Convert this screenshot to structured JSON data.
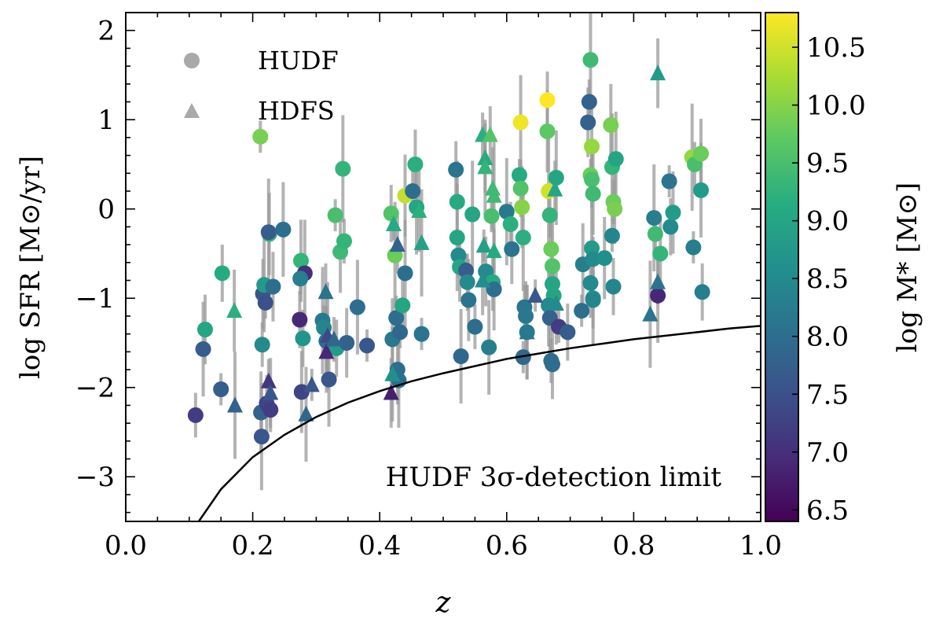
{
  "chart_data": {
    "type": "scatter",
    "title": "",
    "xlabel": "z",
    "ylabel": "log SFR [M⊙/yr]",
    "xlim": [
      0.0,
      1.0
    ],
    "ylim": [
      -3.5,
      2.2
    ],
    "x_ticks": [
      "0.0",
      "0.2",
      "0.4",
      "0.6",
      "0.8",
      "1.0"
    ],
    "y_ticks": [
      "−3",
      "−2",
      "−1",
      "0",
      "1",
      "2"
    ],
    "colorbar": {
      "label": "log M* [M⊙]",
      "range": [
        6.4,
        10.8
      ],
      "ticks": [
        "6.5",
        "7.0",
        "7.5",
        "8.0",
        "8.5",
        "9.0",
        "9.5",
        "10.0",
        "10.5"
      ],
      "colormap": "viridis"
    },
    "legend": [
      {
        "label": "HUDF",
        "marker": "circle"
      },
      {
        "label": "HDFS",
        "marker": "triangle"
      }
    ],
    "legend_position": "top-left",
    "annotation": "HUDF 3σ-detection limit",
    "detection_limit_curve": {
      "x": [
        0.115,
        0.15,
        0.2,
        0.25,
        0.3,
        0.35,
        0.4,
        0.45,
        0.5,
        0.55,
        0.6,
        0.65,
        0.7,
        0.75,
        0.8,
        0.85,
        0.9,
        0.95,
        1.0
      ],
      "y": [
        -3.5,
        -3.14,
        -2.78,
        -2.53,
        -2.33,
        -2.17,
        -2.04,
        -1.93,
        -1.84,
        -1.76,
        -1.68,
        -1.62,
        -1.56,
        -1.51,
        -1.46,
        -1.42,
        -1.38,
        -1.34,
        -1.31
      ]
    },
    "series": [
      {
        "name": "HUDF",
        "marker": "circle",
        "points": [
          {
            "z": 0.212,
            "sfr": 0.81,
            "mass": 9.9
          },
          {
            "z": 0.274,
            "sfr": -1.24,
            "mass": 6.9
          },
          {
            "z": 0.276,
            "sfr": -0.58,
            "mass": 9.3
          },
          {
            "z": 0.282,
            "sfr": -0.72,
            "mass": 7.0
          },
          {
            "z": 0.11,
            "sfr": -2.31,
            "mass": 7.2
          },
          {
            "z": 0.125,
            "sfr": -1.35,
            "mass": 9.0
          },
          {
            "z": 0.122,
            "sfr": -1.57,
            "mass": 7.7
          },
          {
            "z": 0.15,
            "sfr": -2.02,
            "mass": 7.7
          },
          {
            "z": 0.152,
            "sfr": -0.72,
            "mass": 9.1
          },
          {
            "z": 0.213,
            "sfr": -2.28,
            "mass": 7.8
          },
          {
            "z": 0.214,
            "sfr": -2.55,
            "mass": 7.6
          },
          {
            "z": 0.215,
            "sfr": -1.52,
            "mass": 8.5
          },
          {
            "z": 0.216,
            "sfr": -0.95,
            "mass": 7.6
          },
          {
            "z": 0.218,
            "sfr": -0.85,
            "mass": 8.8
          },
          {
            "z": 0.22,
            "sfr": -1.05,
            "mass": 7.5
          },
          {
            "z": 0.222,
            "sfr": -2.18,
            "mass": 7.3
          },
          {
            "z": 0.226,
            "sfr": -0.28,
            "mass": 9.3
          },
          {
            "z": 0.225,
            "sfr": -0.26,
            "mass": 7.7
          },
          {
            "z": 0.228,
            "sfr": -2.25,
            "mass": 7.2
          },
          {
            "z": 0.232,
            "sfr": -0.87,
            "mass": 8.0
          },
          {
            "z": 0.248,
            "sfr": -0.23,
            "mass": 8.0
          },
          {
            "z": 0.275,
            "sfr": -0.78,
            "mass": 8.3
          },
          {
            "z": 0.279,
            "sfr": -1.45,
            "mass": 8.7
          },
          {
            "z": 0.277,
            "sfr": -2.05,
            "mass": 7.3
          },
          {
            "z": 0.31,
            "sfr": -1.25,
            "mass": 8.2
          },
          {
            "z": 0.312,
            "sfr": -1.33,
            "mass": 8.4
          },
          {
            "z": 0.316,
            "sfr": -1.48,
            "mass": 8.0
          },
          {
            "z": 0.32,
            "sfr": -1.91,
            "mass": 7.6
          },
          {
            "z": 0.33,
            "sfr": -0.07,
            "mass": 9.5
          },
          {
            "z": 0.332,
            "sfr": -1.56,
            "mass": 8.8
          },
          {
            "z": 0.338,
            "sfr": -0.48,
            "mass": 9.4
          },
          {
            "z": 0.342,
            "sfr": 0.45,
            "mass": 9.3
          },
          {
            "z": 0.344,
            "sfr": -0.36,
            "mass": 9.3
          },
          {
            "z": 0.348,
            "sfr": -1.5,
            "mass": 7.8
          },
          {
            "z": 0.365,
            "sfr": -1.1,
            "mass": 8.0
          },
          {
            "z": 0.38,
            "sfr": -1.53,
            "mass": 7.6
          },
          {
            "z": 0.418,
            "sfr": -0.05,
            "mass": 9.6
          },
          {
            "z": 0.42,
            "sfr": -1.46,
            "mass": 8.2
          },
          {
            "z": 0.424,
            "sfr": -0.52,
            "mass": 9.8
          },
          {
            "z": 0.426,
            "sfr": -1.22,
            "mass": 8.0
          },
          {
            "z": 0.428,
            "sfr": -1.8,
            "mass": 8.0
          },
          {
            "z": 0.43,
            "sfr": -1.92,
            "mass": 8.0
          },
          {
            "z": 0.432,
            "sfr": -1.38,
            "mass": 7.9
          },
          {
            "z": 0.436,
            "sfr": -1.08,
            "mass": 9.0
          },
          {
            "z": 0.44,
            "sfr": 0.15,
            "mass": 10.4
          },
          {
            "z": 0.44,
            "sfr": -0.72,
            "mass": 8.0
          },
          {
            "z": 0.452,
            "sfr": 0.2,
            "mass": 8.0
          },
          {
            "z": 0.456,
            "sfr": 0.5,
            "mass": 9.2
          },
          {
            "z": 0.458,
            "sfr": 0.02,
            "mass": 9.0
          },
          {
            "z": 0.466,
            "sfr": -1.4,
            "mass": 8.1
          },
          {
            "z": 0.52,
            "sfr": 0.44,
            "mass": 8.1
          },
          {
            "z": 0.522,
            "sfr": 0.08,
            "mass": 9.1
          },
          {
            "z": 0.522,
            "sfr": -0.32,
            "mass": 9.0
          },
          {
            "z": 0.524,
            "sfr": -0.52,
            "mass": 8.5
          },
          {
            "z": 0.526,
            "sfr": -0.65,
            "mass": 9.0
          },
          {
            "z": 0.528,
            "sfr": -1.65,
            "mass": 7.9
          },
          {
            "z": 0.536,
            "sfr": -0.69,
            "mass": 7.7
          },
          {
            "z": 0.538,
            "sfr": -0.82,
            "mass": 8.5
          },
          {
            "z": 0.54,
            "sfr": -1.02,
            "mass": 8.1
          },
          {
            "z": 0.546,
            "sfr": -0.06,
            "mass": 9.0
          },
          {
            "z": 0.55,
            "sfr": -1.32,
            "mass": 8.0
          },
          {
            "z": 0.567,
            "sfr": -0.7,
            "mass": 8.5
          },
          {
            "z": 0.572,
            "sfr": -1.55,
            "mass": 8.3
          },
          {
            "z": 0.576,
            "sfr": -0.08,
            "mass": 9.5
          },
          {
            "z": 0.578,
            "sfr": -0.82,
            "mass": 9.1
          },
          {
            "z": 0.58,
            "sfr": -0.9,
            "mass": 8.0
          },
          {
            "z": 0.6,
            "sfr": -0.03,
            "mass": 8.2
          },
          {
            "z": 0.606,
            "sfr": -0.17,
            "mass": 9.2
          },
          {
            "z": 0.608,
            "sfr": -0.45,
            "mass": 8.1
          },
          {
            "z": 0.622,
            "sfr": 0.97,
            "mass": 10.7
          },
          {
            "z": 0.62,
            "sfr": 0.38,
            "mass": 9.1
          },
          {
            "z": 0.622,
            "sfr": 0.23,
            "mass": 9.6
          },
          {
            "z": 0.624,
            "sfr": 0.02,
            "mass": 10.0
          },
          {
            "z": 0.626,
            "sfr": -0.32,
            "mass": 9.2
          },
          {
            "z": 0.628,
            "sfr": -1.1,
            "mass": 8.1
          },
          {
            "z": 0.63,
            "sfr": -1.2,
            "mass": 8.2
          },
          {
            "z": 0.632,
            "sfr": -1.38,
            "mass": 8.2
          },
          {
            "z": 0.626,
            "sfr": -1.66,
            "mass": 7.9
          },
          {
            "z": 0.664,
            "sfr": 1.22,
            "mass": 10.8
          },
          {
            "z": 0.664,
            "sfr": 0.87,
            "mass": 9.7
          },
          {
            "z": 0.666,
            "sfr": 0.2,
            "mass": 10.5
          },
          {
            "z": 0.668,
            "sfr": -0.07,
            "mass": 9.3
          },
          {
            "z": 0.67,
            "sfr": -0.45,
            "mass": 9.8
          },
          {
            "z": 0.672,
            "sfr": -0.64,
            "mass": 9.6
          },
          {
            "z": 0.672,
            "sfr": -0.84,
            "mass": 9.0
          },
          {
            "z": 0.674,
            "sfr": -0.97,
            "mass": 9.0
          },
          {
            "z": 0.666,
            "sfr": -1.08,
            "mass": 8.5
          },
          {
            "z": 0.668,
            "sfr": -1.22,
            "mass": 7.8
          },
          {
            "z": 0.67,
            "sfr": -1.7,
            "mass": 8.0
          },
          {
            "z": 0.672,
            "sfr": -1.74,
            "mass": 8.0
          },
          {
            "z": 0.678,
            "sfr": 0.35,
            "mass": 9.0
          },
          {
            "z": 0.682,
            "sfr": -1.32,
            "mass": 7.2
          },
          {
            "z": 0.696,
            "sfr": -1.38,
            "mass": 7.7
          },
          {
            "z": 0.72,
            "sfr": -0.62,
            "mass": 8.3
          },
          {
            "z": 0.732,
            "sfr": 1.67,
            "mass": 9.4
          },
          {
            "z": 0.73,
            "sfr": 1.2,
            "mass": 7.8
          },
          {
            "z": 0.728,
            "sfr": 0.97,
            "mass": 7.8
          },
          {
            "z": 0.734,
            "sfr": 0.7,
            "mass": 10.1
          },
          {
            "z": 0.732,
            "sfr": 0.38,
            "mass": 9.8
          },
          {
            "z": 0.734,
            "sfr": 0.33,
            "mass": 9.5
          },
          {
            "z": 0.736,
            "sfr": 0.17,
            "mass": 9.4
          },
          {
            "z": 0.734,
            "sfr": -0.44,
            "mass": 8.8
          },
          {
            "z": 0.736,
            "sfr": -0.56,
            "mass": 8.5
          },
          {
            "z": 0.732,
            "sfr": -0.83,
            "mass": 8.5
          },
          {
            "z": 0.736,
            "sfr": -1.0,
            "mass": 8.6
          },
          {
            "z": 0.718,
            "sfr": -1.14,
            "mass": 8.0
          },
          {
            "z": 0.736,
            "sfr": -1.02,
            "mass": 8.4
          },
          {
            "z": 0.764,
            "sfr": 0.94,
            "mass": 9.9
          },
          {
            "z": 0.766,
            "sfr": 0.47,
            "mass": 9.3
          },
          {
            "z": 0.768,
            "sfr": 0.08,
            "mass": 9.8
          },
          {
            "z": 0.77,
            "sfr": 0.0,
            "mass": 9.9
          },
          {
            "z": 0.772,
            "sfr": 0.56,
            "mass": 9.0
          },
          {
            "z": 0.766,
            "sfr": -0.3,
            "mass": 8.4
          },
          {
            "z": 0.768,
            "sfr": -0.87,
            "mass": 8.4
          },
          {
            "z": 0.754,
            "sfr": -0.55,
            "mass": 8.6
          },
          {
            "z": 0.832,
            "sfr": -0.1,
            "mass": 8.3
          },
          {
            "z": 0.834,
            "sfr": -0.28,
            "mass": 9.4
          },
          {
            "z": 0.842,
            "sfr": -0.5,
            "mass": 9.3
          },
          {
            "z": 0.838,
            "sfr": -0.97,
            "mass": 6.9
          },
          {
            "z": 0.856,
            "sfr": 0.31,
            "mass": 8.1
          },
          {
            "z": 0.858,
            "sfr": -0.2,
            "mass": 8.5
          },
          {
            "z": 0.862,
            "sfr": -0.04,
            "mass": 8.8
          },
          {
            "z": 0.892,
            "sfr": 0.58,
            "mass": 10.1
          },
          {
            "z": 0.896,
            "sfr": 0.5,
            "mass": 9.5
          },
          {
            "z": 0.906,
            "sfr": 0.62,
            "mass": 9.8
          },
          {
            "z": 0.906,
            "sfr": 0.21,
            "mass": 8.8
          },
          {
            "z": 0.894,
            "sfr": -0.43,
            "mass": 8.3
          },
          {
            "z": 0.908,
            "sfr": -0.93,
            "mass": 8.3
          }
        ]
      },
      {
        "name": "HDFS",
        "marker": "triangle",
        "points": [
          {
            "z": 0.171,
            "sfr": -1.14,
            "mass": 9.2
          },
          {
            "z": 0.172,
            "sfr": -2.2,
            "mass": 7.8
          },
          {
            "z": 0.225,
            "sfr": -1.93,
            "mass": 7.1
          },
          {
            "z": 0.228,
            "sfr": -2.06,
            "mass": 7.6
          },
          {
            "z": 0.284,
            "sfr": -2.3,
            "mass": 7.9
          },
          {
            "z": 0.293,
            "sfr": -1.97,
            "mass": 7.6
          },
          {
            "z": 0.315,
            "sfr": -0.93,
            "mass": 8.1
          },
          {
            "z": 0.316,
            "sfr": -1.6,
            "mass": 6.9
          },
          {
            "z": 0.318,
            "sfr": -1.42,
            "mass": 7.4
          },
          {
            "z": 0.328,
            "sfr": -1.46,
            "mass": 7.9
          },
          {
            "z": 0.418,
            "sfr": -2.06,
            "mass": 6.8
          },
          {
            "z": 0.42,
            "sfr": -1.85,
            "mass": 8.6
          },
          {
            "z": 0.422,
            "sfr": -0.17,
            "mass": 9.1
          },
          {
            "z": 0.428,
            "sfr": -0.4,
            "mass": 7.8
          },
          {
            "z": 0.462,
            "sfr": -0.02,
            "mass": 9.2
          },
          {
            "z": 0.466,
            "sfr": -0.38,
            "mass": 8.9
          },
          {
            "z": 0.562,
            "sfr": 0.83,
            "mass": 9.2
          },
          {
            "z": 0.566,
            "sfr": 0.57,
            "mass": 9.1
          },
          {
            "z": 0.566,
            "sfr": 0.47,
            "mass": 9.3
          },
          {
            "z": 0.564,
            "sfr": -0.41,
            "mass": 8.9
          },
          {
            "z": 0.574,
            "sfr": 0.83,
            "mass": 9.6
          },
          {
            "z": 0.578,
            "sfr": 0.23,
            "mass": 9.4
          },
          {
            "z": 0.58,
            "sfr": 0.15,
            "mass": 9.4
          },
          {
            "z": 0.58,
            "sfr": -0.47,
            "mass": 9.1
          },
          {
            "z": 0.562,
            "sfr": -0.8,
            "mass": 8.6
          },
          {
            "z": 0.632,
            "sfr": -1.38,
            "mass": 8.2
          },
          {
            "z": 0.645,
            "sfr": -0.97,
            "mass": 7.6
          },
          {
            "z": 0.676,
            "sfr": 0.22,
            "mass": 9.0
          },
          {
            "z": 0.678,
            "sfr": -1.06,
            "mass": 8.5
          },
          {
            "z": 0.826,
            "sfr": -1.18,
            "mass": 8.1
          },
          {
            "z": 0.838,
            "sfr": -0.82,
            "mass": 8.1
          },
          {
            "z": 0.838,
            "sfr": 1.52,
            "mass": 8.8
          }
        ]
      }
    ]
  }
}
